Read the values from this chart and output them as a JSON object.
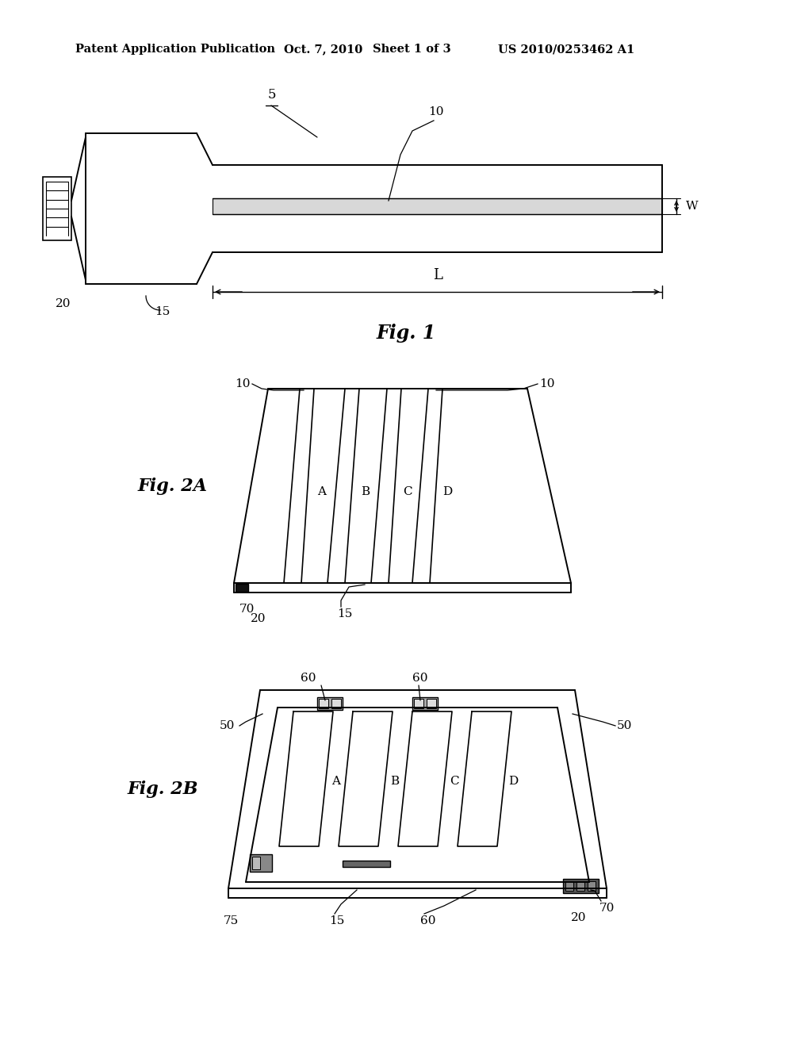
{
  "bg_color": "#ffffff",
  "header_left": "Patent Application Publication",
  "header_mid": "Oct. 7, 2010   Sheet 1 of 3",
  "header_right": "US 2010/0253462 A1",
  "fig1_label": "Fig. 1",
  "fig2a_label": "Fig. 2A",
  "fig2b_label": "Fig. 2B",
  "lw_main": 1.4,
  "lw_thin": 1.0,
  "line_color": "#000000"
}
